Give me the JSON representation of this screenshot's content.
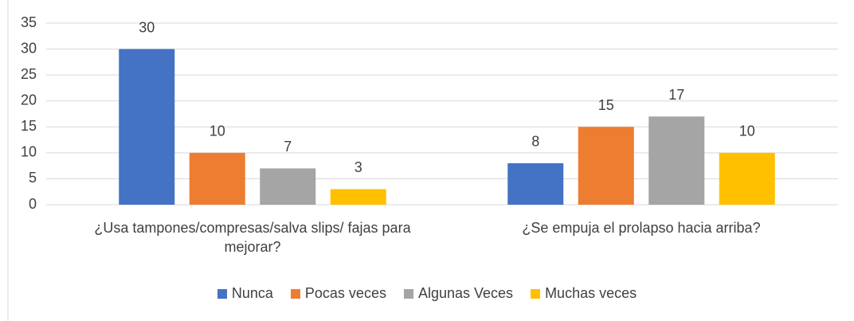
{
  "chart_data": {
    "type": "bar",
    "categories": [
      "¿Usa tampones/compresas/salva slips/ fajas para mejorar?",
      "¿Se empuja el prolapso hacia arriba?"
    ],
    "series": [
      {
        "name": "Nunca",
        "color": "#4472c4",
        "values": [
          30,
          8
        ]
      },
      {
        "name": "Pocas veces",
        "color": "#ed7d31",
        "values": [
          10,
          15
        ]
      },
      {
        "name": "Algunas Veces",
        "color": "#a5a5a5",
        "values": [
          7,
          17
        ]
      },
      {
        "name": "Muchas veces",
        "color": "#ffc000",
        "values": [
          3,
          10
        ]
      }
    ],
    "ylim": [
      0,
      35
    ],
    "yticks": [
      0,
      5,
      10,
      15,
      20,
      25,
      30,
      35
    ],
    "grid": true,
    "legend": "bottom"
  }
}
